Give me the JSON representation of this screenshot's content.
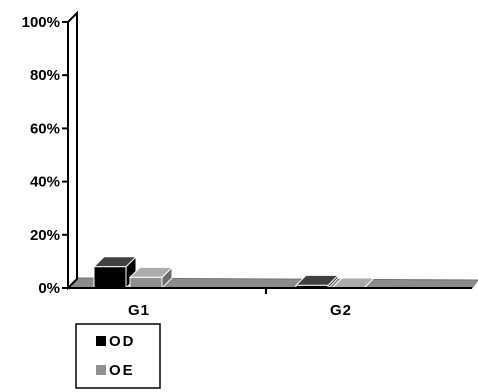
{
  "chart_data": {
    "type": "bar",
    "style": "3d-clustered",
    "categories": [
      "G1",
      "G2"
    ],
    "series": [
      {
        "name": "OD",
        "values": [
          8,
          1
        ],
        "color": "#000000"
      },
      {
        "name": "OE",
        "values": [
          4,
          0
        ],
        "color": "#909090"
      }
    ],
    "y_ticks": [
      "0%",
      "20%",
      "40%",
      "60%",
      "80%",
      "100%"
    ],
    "ylim": [
      0,
      100
    ],
    "xlabel": "",
    "ylabel": "",
    "grid": false,
    "legend_position": "bottom-left"
  }
}
